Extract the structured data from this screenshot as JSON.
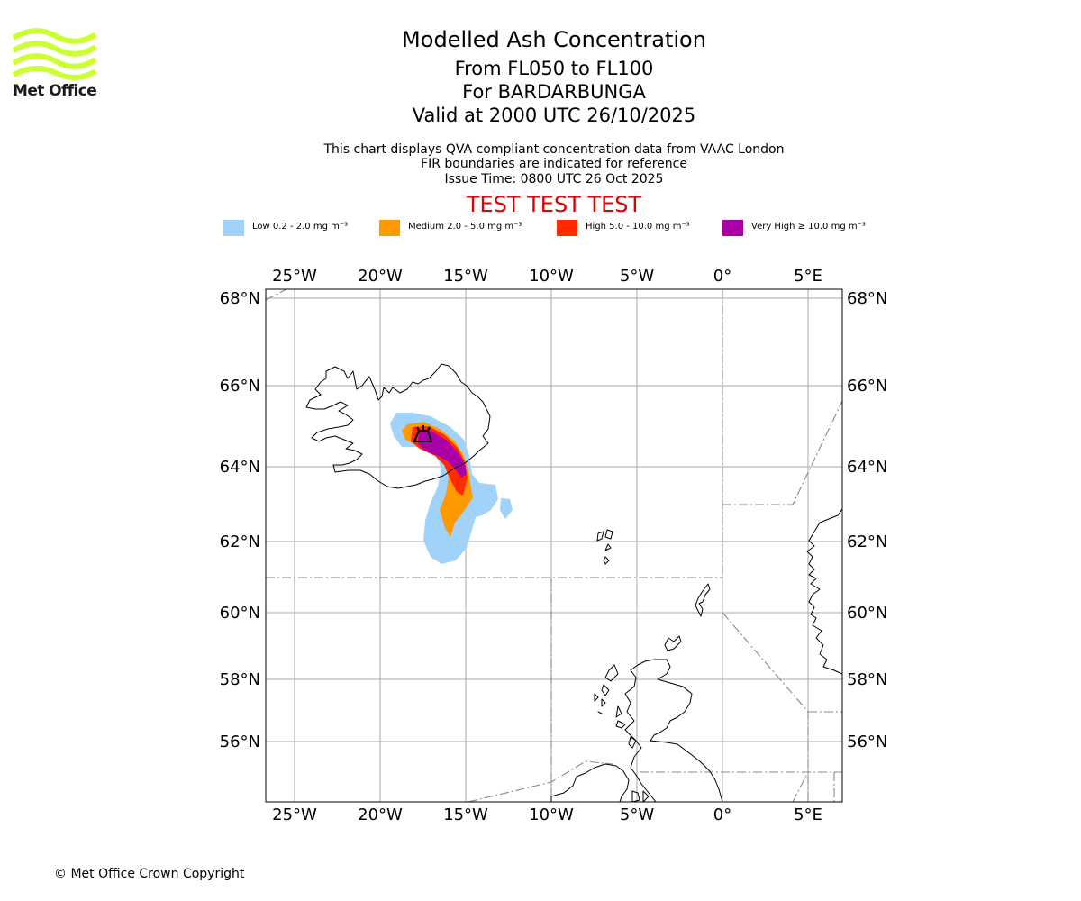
{
  "brand": {
    "logo_text": "Met Office"
  },
  "header": {
    "title": "Modelled Ash Concentration",
    "level_range": "From FL050 to FL100",
    "volcano": "For BARDARBUNGA",
    "valid_time": "Valid at 2000 UTC 26/10/2025"
  },
  "subtitle": {
    "line1": "This chart displays QVA compliant concentration data from VAAC London",
    "line2": "FIR boundaries are indicated for reference",
    "line3": "Issue Time: 0800 UTC 26 Oct 2025"
  },
  "test_banner": "TEST TEST TEST",
  "legend": [
    {
      "label": "Low 0.2 - 2.0 mg m⁻³",
      "color": "#a0d2fa"
    },
    {
      "label": "Medium 2.0 - 5.0 mg m⁻³",
      "color": "#ff9900"
    },
    {
      "label": "High 5.0 - 10.0 mg m⁻³",
      "color": "#ff2a00"
    },
    {
      "label": "Very High  ≥  10.0 mg m⁻³",
      "color": "#aa00aa"
    }
  ],
  "map": {
    "lon_ticks": [
      "25°W",
      "20°W",
      "15°W",
      "10°W",
      "5°W",
      "0°",
      "5°E"
    ],
    "lat_ticks": [
      "68°N",
      "66°N",
      "64°N",
      "62°N",
      "60°N",
      "58°N",
      "56°N"
    ],
    "frame_color": "#000000",
    "grid_color": "#aaaaaa",
    "fir_color": "#888888"
  },
  "footer": {
    "copyright": "© Met Office Crown Copyright"
  }
}
